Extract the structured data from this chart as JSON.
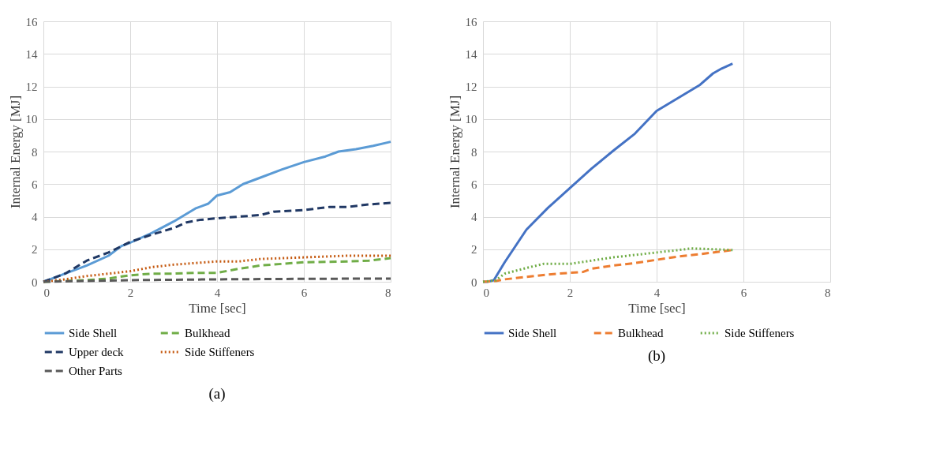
{
  "chart_data": [
    {
      "type": "line",
      "title": "(a)",
      "xlabel": "Time [sec]",
      "ylabel": "Internal Energy [MJ]",
      "xlim": [
        0,
        8
      ],
      "xticks": [
        0,
        2,
        4,
        6,
        8
      ],
      "ylim": [
        0,
        16
      ],
      "yticks": [
        0,
        2,
        4,
        6,
        8,
        10,
        12,
        14,
        16
      ],
      "grid": true,
      "legend": "bottom",
      "series": [
        {
          "name": "Side Shell",
          "color": "#5b9bd5",
          "line_style": "solid",
          "x": [
            0,
            0.3,
            0.5,
            1,
            1.5,
            1.8,
            2,
            2.5,
            3,
            3.5,
            3.8,
            4,
            4.3,
            4.6,
            5,
            5.5,
            6,
            6.5,
            6.8,
            7.2,
            7.6,
            8
          ],
          "values": [
            0,
            0.3,
            0.5,
            1.0,
            1.6,
            2.2,
            2.4,
            3.0,
            3.7,
            4.5,
            4.8,
            5.3,
            5.5,
            6.0,
            6.4,
            6.9,
            7.35,
            7.7,
            8.0,
            8.15,
            8.35,
            8.6
          ]
        },
        {
          "name": "Bulkhead",
          "color": "#70ad47",
          "line_style": "dashed",
          "x": [
            0,
            0.5,
            1,
            1.5,
            2,
            2.5,
            3,
            3.5,
            4,
            4.5,
            5,
            5.5,
            6,
            7,
            7.5,
            8
          ],
          "values": [
            0,
            0.05,
            0.1,
            0.2,
            0.4,
            0.5,
            0.5,
            0.55,
            0.55,
            0.8,
            1.0,
            1.1,
            1.2,
            1.25,
            1.3,
            1.45
          ]
        },
        {
          "name": "Upper deck",
          "color": "#203864",
          "line_style": "dashed",
          "x": [
            0,
            0.5,
            1,
            1.5,
            2,
            2.5,
            3,
            3.3,
            3.6,
            4,
            4.5,
            5,
            5.3,
            6,
            6.6,
            7,
            7.5,
            8
          ],
          "values": [
            0,
            0.5,
            1.3,
            1.8,
            2.45,
            2.9,
            3.3,
            3.65,
            3.8,
            3.9,
            4.0,
            4.1,
            4.3,
            4.4,
            4.6,
            4.6,
            4.75,
            4.85
          ]
        },
        {
          "name": "Side Stiffeners",
          "color": "#c55a11",
          "line_style": "dotted",
          "x": [
            0,
            0.5,
            1,
            1.5,
            2,
            2.5,
            3,
            3.5,
            4,
            4.5,
            5,
            5.5,
            6,
            6.5,
            7,
            8
          ],
          "values": [
            0,
            0.15,
            0.35,
            0.5,
            0.65,
            0.9,
            1.05,
            1.15,
            1.25,
            1.25,
            1.4,
            1.45,
            1.5,
            1.55,
            1.6,
            1.6
          ]
        },
        {
          "name": "Other Parts",
          "color": "#595959",
          "line_style": "dashed",
          "x": [
            0,
            1,
            2,
            4,
            6,
            8
          ],
          "values": [
            0,
            0.05,
            0.1,
            0.15,
            0.18,
            0.2
          ]
        }
      ]
    },
    {
      "type": "line",
      "title": "(b)",
      "xlabel": "Time [sec]",
      "ylabel": "Internal Energy [MJ]",
      "xlim": [
        0,
        8
      ],
      "xticks": [
        0,
        2,
        4,
        6,
        8
      ],
      "ylim": [
        0,
        16
      ],
      "yticks": [
        0,
        2,
        4,
        6,
        8,
        10,
        12,
        14,
        16
      ],
      "grid": true,
      "legend": "bottom",
      "series": [
        {
          "name": "Side Shell",
          "color": "#4472c4",
          "line_style": "solid",
          "x": [
            0,
            0.1,
            0.25,
            0.5,
            1,
            1.5,
            2,
            2.5,
            3,
            3.5,
            4,
            4.5,
            5,
            5.3,
            5.5,
            5.75
          ],
          "values": [
            0,
            0,
            0.1,
            1.2,
            3.2,
            4.55,
            5.75,
            6.95,
            8.05,
            9.1,
            10.5,
            11.3,
            12.1,
            12.8,
            13.1,
            13.4
          ]
        },
        {
          "name": "Bulkhead",
          "color": "#ed7d31",
          "line_style": "dashed",
          "x": [
            0,
            0.3,
            0.5,
            1,
            1.5,
            2,
            2.3,
            2.5,
            3,
            3.5,
            4,
            4.5,
            5,
            5.75
          ],
          "values": [
            0,
            0.05,
            0.15,
            0.3,
            0.45,
            0.55,
            0.6,
            0.8,
            1.0,
            1.15,
            1.35,
            1.55,
            1.7,
            1.95
          ]
        },
        {
          "name": "Side Stiffeners",
          "color": "#70ad47",
          "line_style": "dotted",
          "x": [
            0,
            0.3,
            0.5,
            1,
            1.4,
            2,
            2.5,
            3,
            3.5,
            4,
            4.5,
            4.8,
            5.3,
            5.75
          ],
          "values": [
            0,
            0.1,
            0.5,
            0.85,
            1.1,
            1.1,
            1.3,
            1.5,
            1.65,
            1.8,
            1.95,
            2.05,
            2.0,
            1.95
          ]
        }
      ]
    }
  ]
}
